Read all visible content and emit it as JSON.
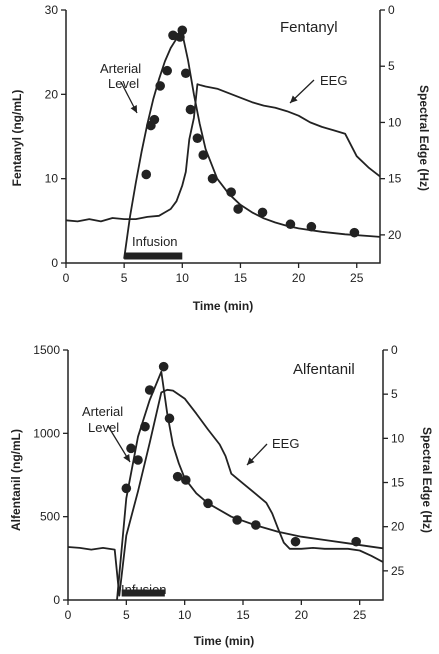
{
  "colors": {
    "ink": "#222222",
    "background": "#ffffff"
  },
  "chart_data": [
    {
      "type": "line",
      "title": "Fentanyl",
      "xlabel": "Time (min)",
      "ylabel_left": "Fentanyl (ng/mL)",
      "ylabel_right": "Spectral Edge (Hz)",
      "xlim": [
        0,
        27
      ],
      "ylim_left": [
        0,
        30
      ],
      "ylim_right": [
        22.5,
        0
      ],
      "right_axis_inverted": true,
      "x_ticks": [
        "0",
        "5",
        "10",
        "15",
        "20",
        "25"
      ],
      "y_left_ticks": [
        "0",
        "10",
        "20",
        "30"
      ],
      "y_right_ticks": [
        "0",
        "5",
        "10",
        "15",
        "20"
      ],
      "annotations": {
        "arterial": [
          "Arterial",
          "Level"
        ],
        "eeg": "EEG",
        "infusion": "Infusion"
      },
      "infusion_interval": [
        5,
        10
      ],
      "grid": false,
      "series": [
        {
          "name": "Arterial Level",
          "kind": "points",
          "axis": "left",
          "x": [
            6.9,
            7.3,
            7.6,
            8.1,
            8.7,
            9.2,
            9.8,
            10.0,
            10.3,
            10.7,
            11.3,
            11.8,
            12.6,
            14.2,
            14.8,
            16.9,
            19.3,
            21.1,
            24.8
          ],
          "y": [
            10.5,
            16.3,
            17.0,
            21.0,
            22.8,
            27.0,
            26.8,
            27.6,
            22.5,
            18.2,
            14.8,
            12.8,
            10.0,
            8.4,
            6.4,
            6.0,
            4.6,
            4.3,
            3.6
          ]
        },
        {
          "name": "",
          "kind": "fit",
          "axis": "left",
          "x": [
            5.0,
            5.5,
            6.0,
            6.5,
            7.0,
            7.5,
            8.0,
            8.5,
            9.0,
            9.5,
            10.0,
            10.5,
            11.0,
            11.5,
            12.0,
            13.0,
            14.0,
            15.0,
            16.0,
            17.0,
            18.0,
            19.0,
            20.0,
            22.0,
            24.0,
            26.0,
            27.0
          ],
          "y": [
            0.5,
            5.5,
            9.5,
            13.2,
            16.5,
            19.4,
            21.8,
            23.9,
            25.5,
            26.6,
            27.2,
            24.0,
            20.0,
            16.5,
            13.5,
            10.0,
            8.2,
            6.9,
            6.0,
            5.3,
            4.8,
            4.4,
            4.1,
            3.7,
            3.4,
            3.2,
            3.1
          ]
        },
        {
          "name": "EEG",
          "kind": "trace",
          "axis": "right",
          "x": [
            0,
            1,
            2,
            3,
            4,
            5,
            6,
            7,
            8,
            8.5,
            9,
            9.5,
            10,
            10.3,
            10.6,
            11.0,
            11.3,
            11.6,
            12,
            13,
            14,
            15,
            16,
            17,
            18,
            19,
            20,
            21,
            22,
            23,
            24,
            25,
            26,
            27
          ],
          "y": [
            18.7,
            18.8,
            18.6,
            18.8,
            18.5,
            18.6,
            18.6,
            18.4,
            18.3,
            18.0,
            17.7,
            17.0,
            15.6,
            14.4,
            11.5,
            9.6,
            6.6,
            6.7,
            6.8,
            7.0,
            7.4,
            7.8,
            8.2,
            8.5,
            8.7,
            9.0,
            9.4,
            10.0,
            10.4,
            10.7,
            11.0,
            13.0,
            14.0,
            14.8
          ]
        }
      ]
    },
    {
      "type": "line",
      "title": "Alfentanil",
      "xlabel": "Time (min)",
      "ylabel_left": "Alfentanil (ng/mL)",
      "ylabel_right": "Spectral Edge (Hz)",
      "xlim": [
        0,
        27
      ],
      "ylim_left": [
        0,
        1500
      ],
      "ylim_right": [
        28.3,
        0
      ],
      "right_axis_inverted": true,
      "x_ticks": [
        "0",
        "5",
        "10",
        "15",
        "20",
        "25"
      ],
      "y_left_ticks": [
        "0",
        "500",
        "1000",
        "1500"
      ],
      "y_right_ticks": [
        "0",
        "5",
        "10",
        "15",
        "20",
        "25"
      ],
      "annotations": {
        "arterial": [
          "Arterial",
          "Level"
        ],
        "eeg": "EEG",
        "infusion": "Infusion"
      },
      "infusion_interval": [
        4.6,
        8.3
      ],
      "grid": false,
      "series": [
        {
          "name": "Arterial Level",
          "kind": "points",
          "axis": "left",
          "x": [
            5.0,
            5.4,
            6.0,
            6.6,
            7.0,
            8.2,
            8.7,
            9.4,
            10.1,
            12.0,
            14.5,
            16.1,
            19.5,
            24.7
          ],
          "y": [
            670,
            910,
            840,
            1040,
            1260,
            1400,
            1090,
            740,
            720,
            580,
            480,
            450,
            350,
            350
          ]
        },
        {
          "name": "",
          "kind": "fit",
          "axis": "left",
          "x": [
            4.2,
            5.0,
            6.0,
            7.0,
            8.0,
            8.5,
            9.0,
            9.5,
            10.0,
            11.0,
            12.0,
            14.0,
            16.0,
            18.0,
            20.0,
            22.0,
            24.0,
            26.0,
            27.0
          ],
          "y": [
            0,
            610,
            980,
            1200,
            1370,
            1120,
            930,
            820,
            730,
            640,
            580,
            500,
            450,
            410,
            380,
            360,
            340,
            320,
            310
          ]
        },
        {
          "name": "EEG",
          "kind": "trace",
          "axis": "right",
          "x": [
            0,
            1,
            2,
            3,
            4,
            4.4,
            5,
            6,
            7,
            8,
            8.5,
            9,
            10,
            11,
            12,
            13,
            13.5,
            14,
            15,
            16,
            17,
            17.5,
            18,
            18.5,
            19,
            20,
            21,
            22,
            23,
            24,
            25,
            26,
            27
          ],
          "y": [
            22.3,
            22.4,
            22.6,
            22.4,
            22.6,
            27.8,
            21.0,
            16.0,
            10.5,
            4.8,
            4.5,
            4.6,
            5.5,
            7.2,
            9.0,
            10.7,
            12.0,
            14.0,
            15.1,
            16.2,
            17.3,
            18.5,
            20.2,
            21.8,
            22.5,
            22.5,
            22.4,
            22.5,
            22.5,
            22.5,
            22.7,
            23.3,
            24.0
          ]
        }
      ]
    }
  ]
}
